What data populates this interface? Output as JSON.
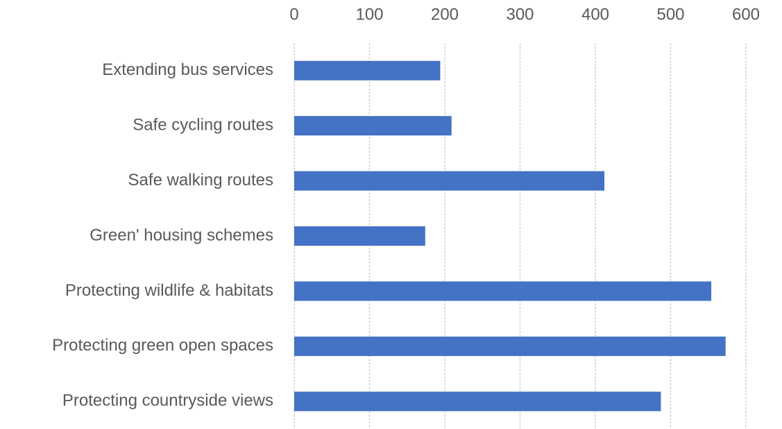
{
  "chart_data": {
    "type": "bar",
    "orientation": "horizontal",
    "categories": [
      "Extending bus services",
      "Safe cycling routes",
      "Safe walking routes",
      "Green' housing schemes",
      "Protecting wildlife & habitats",
      "Protecting green open spaces",
      "Protecting countryside views"
    ],
    "values": [
      194,
      209,
      412,
      174,
      554,
      573,
      487
    ],
    "color": "#4472c4",
    "xlim": [
      0,
      600
    ],
    "xticks": [
      0,
      100,
      200,
      300,
      400,
      500,
      600
    ],
    "grid": true
  }
}
